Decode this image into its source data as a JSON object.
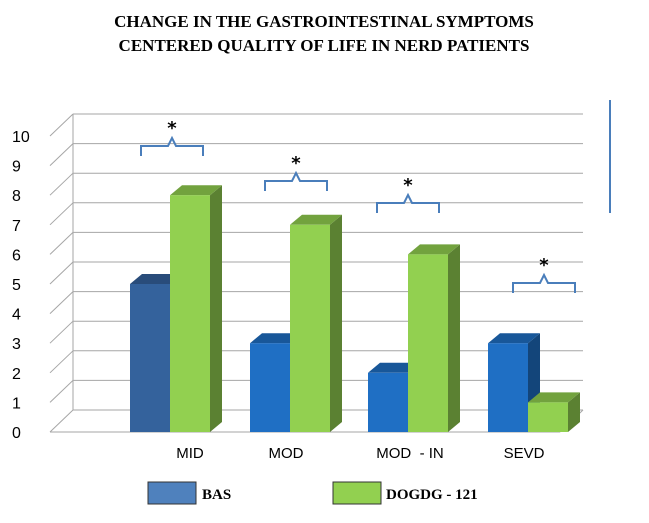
{
  "chart_data": {
    "type": "bar",
    "title": "CHANGE IN THE GASTROINTESTINAL SYMPTOMS CENTERED QUALITY OF LIFE IN NERD PATIENTS",
    "title_lines": [
      "CHANGE IN THE GASTROINTESTINAL SYMPTOMS",
      "CENTERED QUALITY OF LIFE IN NERD PATIENTS"
    ],
    "categories": [
      "MID",
      "MOD",
      "MOD  - IN",
      "SEVD"
    ],
    "series": [
      {
        "name": "BAS",
        "values": [
          5,
          3,
          2,
          3
        ],
        "color": "#1f6fc4"
      },
      {
        "name": "DOGDG - 121",
        "values": [
          8,
          7,
          6,
          1
        ],
        "color": "#92d050"
      }
    ],
    "ylim": [
      0,
      10
    ],
    "yticks": [
      "0",
      "1",
      "2",
      "3",
      "4",
      "5",
      "6",
      "7",
      "8",
      "9",
      "10"
    ],
    "significance_marker": "*",
    "significant_categories": [
      "MID",
      "MOD",
      "MOD  - IN",
      "SEVD"
    ],
    "grid": true,
    "legend_position": "bottom",
    "xlabel": "",
    "ylabel": ""
  }
}
